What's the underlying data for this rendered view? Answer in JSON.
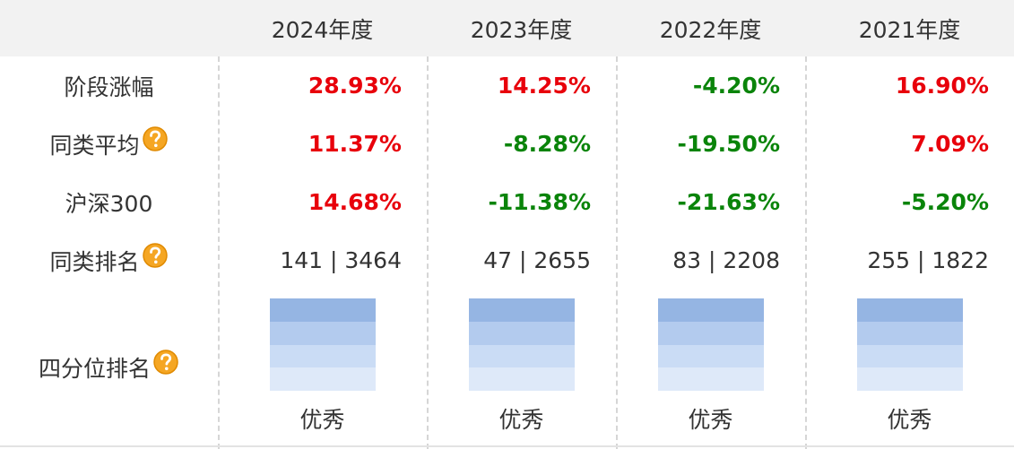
{
  "table": {
    "columns": [
      "2024年度",
      "2023年度",
      "2022年度",
      "2021年度"
    ],
    "rows": [
      {
        "label": "阶段涨幅",
        "help": false,
        "values": [
          "28.93%",
          "14.25%",
          "-4.20%",
          "16.90%"
        ],
        "colored": true
      },
      {
        "label": "同类平均",
        "help": true,
        "values": [
          "11.37%",
          "-8.28%",
          "-19.50%",
          "7.09%"
        ],
        "colored": true
      },
      {
        "label": "沪深300",
        "help": false,
        "values": [
          "14.68%",
          "-11.38%",
          "-21.63%",
          "-5.20%"
        ],
        "colored": true
      },
      {
        "label": "同类排名",
        "help": true,
        "values": [
          "141 | 3464",
          "47 | 2655",
          "83 | 2208",
          "255 | 1822"
        ],
        "colored": false
      }
    ],
    "quartile": {
      "label": "四分位排名",
      "values": [
        "优秀",
        "优秀",
        "优秀",
        "优秀"
      ]
    }
  }
}
